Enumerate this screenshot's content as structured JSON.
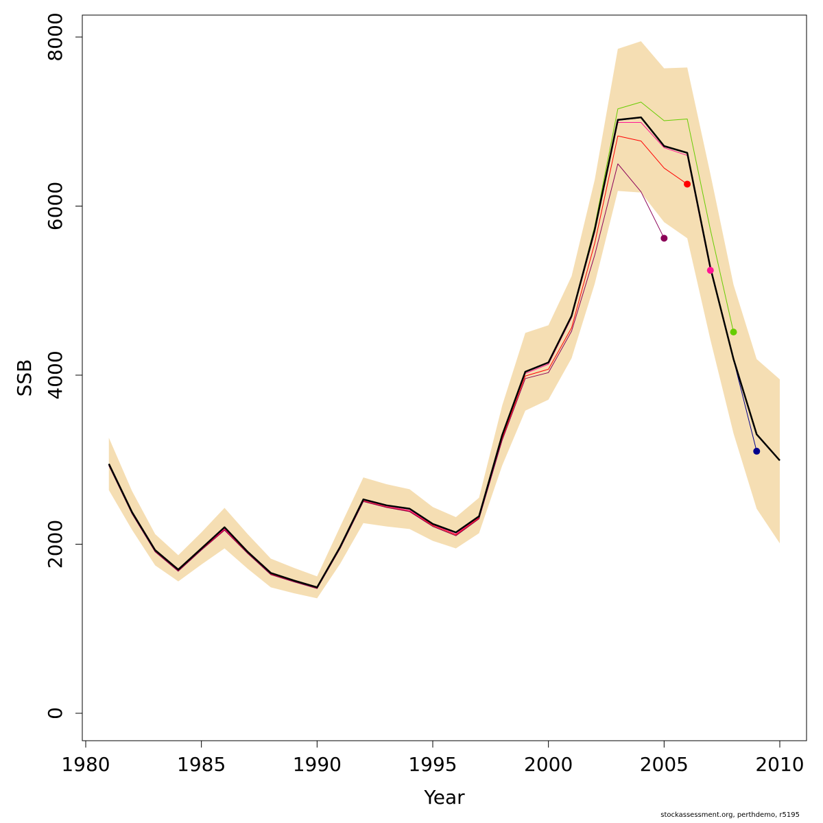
{
  "chart_data": {
    "type": "line",
    "xlabel": "Year",
    "ylabel": "SSB",
    "xlim": [
      1980,
      2010
    ],
    "ylim": [
      0,
      8000
    ],
    "x_ticks": [
      1980,
      1985,
      1990,
      1995,
      2000,
      2005,
      2010
    ],
    "y_ticks": [
      0,
      2000,
      4000,
      6000,
      8000
    ],
    "grid": false,
    "band": {
      "color": "#F5DEB3",
      "x": [
        1981,
        1982,
        1983,
        1984,
        1985,
        1986,
        1987,
        1988,
        1989,
        1990,
        1991,
        1992,
        1993,
        1994,
        1995,
        1996,
        1997,
        1998,
        1999,
        2000,
        2001,
        2002,
        2003,
        2004,
        2005,
        2006,
        2007,
        2008,
        2009,
        2010
      ],
      "lower": [
        2640,
        2170,
        1750,
        1560,
        1760,
        1950,
        1710,
        1490,
        1420,
        1360,
        1770,
        2250,
        2210,
        2180,
        2040,
        1950,
        2130,
        2930,
        3580,
        3710,
        4200,
        5080,
        6180,
        6160,
        5810,
        5620,
        4420,
        3310,
        2420,
        2010
      ],
      "upper": [
        3260,
        2630,
        2120,
        1870,
        2140,
        2430,
        2120,
        1830,
        1720,
        1620,
        2210,
        2790,
        2710,
        2650,
        2440,
        2320,
        2550,
        3640,
        4500,
        4590,
        5170,
        6310,
        7860,
        7950,
        7630,
        7640,
        6380,
        5070,
        4190,
        3950
      ]
    },
    "series": [
      {
        "color": "#000000",
        "main": true,
        "x": [
          1981,
          1982,
          1983,
          1984,
          1985,
          1986,
          1987,
          1988,
          1989,
          1990,
          1991,
          1992,
          1993,
          1994,
          1995,
          1996,
          1997,
          1998,
          1999,
          2000,
          2001,
          2002,
          2003,
          2004,
          2005,
          2006,
          2007,
          2008,
          2009,
          2010
        ],
        "y": [
          2950,
          2380,
          1930,
          1700,
          1950,
          2200,
          1910,
          1660,
          1570,
          1490,
          1970,
          2530,
          2460,
          2420,
          2240,
          2140,
          2330,
          3290,
          4040,
          4150,
          4700,
          5720,
          7020,
          7050,
          6710,
          6630,
          5270,
          4190,
          3300,
          2990
        ]
      },
      {
        "color": "#00008B",
        "x": [
          1981,
          1982,
          1983,
          1984,
          1985,
          1986,
          1987,
          1988,
          1989,
          1990,
          1991,
          1992,
          1993,
          1994,
          1995,
          1996,
          1997,
          1998,
          1999,
          2000,
          2001,
          2002,
          2003,
          2004,
          2005,
          2006,
          2007,
          2008,
          2009
        ],
        "y": [
          2945,
          2375,
          1925,
          1695,
          1945,
          2195,
          1905,
          1655,
          1565,
          1485,
          1965,
          2525,
          2455,
          2415,
          2235,
          2135,
          2325,
          3285,
          4035,
          4145,
          4695,
          5715,
          7015,
          7045,
          6705,
          6625,
          5265,
          4185,
          3100
        ],
        "dot": true
      },
      {
        "color": "#66CC00",
        "x": [
          1981,
          1982,
          1983,
          1984,
          1985,
          1986,
          1987,
          1988,
          1989,
          1990,
          1991,
          1992,
          1993,
          1994,
          1995,
          1996,
          1997,
          1998,
          1999,
          2000,
          2001,
          2002,
          2003,
          2004,
          2005,
          2006,
          2007,
          2008
        ],
        "y": [
          2950,
          2380,
          1930,
          1700,
          1950,
          2200,
          1910,
          1660,
          1570,
          1490,
          1970,
          2530,
          2460,
          2420,
          2240,
          2140,
          2330,
          3290,
          4040,
          4150,
          4700,
          5760,
          7150,
          7230,
          7010,
          7030,
          5720,
          4510
        ],
        "dot": true
      },
      {
        "color": "#FF1493",
        "x": [
          1981,
          1982,
          1983,
          1984,
          1985,
          1986,
          1987,
          1988,
          1989,
          1990,
          1991,
          1992,
          1993,
          1994,
          1995,
          1996,
          1997,
          1998,
          1999,
          2000,
          2001,
          2002,
          2003,
          2004,
          2005,
          2006,
          2007
        ],
        "y": [
          2940,
          2370,
          1920,
          1690,
          1940,
          2180,
          1900,
          1650,
          1565,
          1485,
          1960,
          2520,
          2450,
          2400,
          2230,
          2120,
          2320,
          3270,
          4020,
          4130,
          4680,
          5690,
          6990,
          6990,
          6690,
          6600,
          5240
        ],
        "dot": true
      },
      {
        "color": "#FF0000",
        "x": [
          1981,
          1982,
          1983,
          1984,
          1985,
          1986,
          1987,
          1988,
          1989,
          1990,
          1991,
          1992,
          1993,
          1994,
          1995,
          1996,
          1997,
          1998,
          1999,
          2000,
          2001,
          2002,
          2003,
          2004,
          2005,
          2006
        ],
        "y": [
          2935,
          2365,
          1915,
          1685,
          1935,
          2170,
          1895,
          1645,
          1560,
          1480,
          1955,
          2510,
          2440,
          2390,
          2220,
          2110,
          2310,
          3250,
          3990,
          4070,
          4560,
          5560,
          6830,
          6770,
          6450,
          6260
        ],
        "dot": true
      },
      {
        "color": "#8B0057",
        "x": [
          1981,
          1982,
          1983,
          1984,
          1985,
          1986,
          1987,
          1988,
          1989,
          1990,
          1991,
          1992,
          1993,
          1994,
          1995,
          1996,
          1997,
          1998,
          1999,
          2000,
          2001,
          2002,
          2003,
          2004,
          2005
        ],
        "y": [
          2930,
          2360,
          1910,
          1680,
          1930,
          2165,
          1890,
          1640,
          1555,
          1475,
          1950,
          2505,
          2435,
          2385,
          2210,
          2100,
          2300,
          3230,
          3960,
          4030,
          4520,
          5420,
          6500,
          6170,
          5620
        ],
        "dot": true
      }
    ]
  },
  "footer": "stockassessment.org, perthdemo, r5195"
}
